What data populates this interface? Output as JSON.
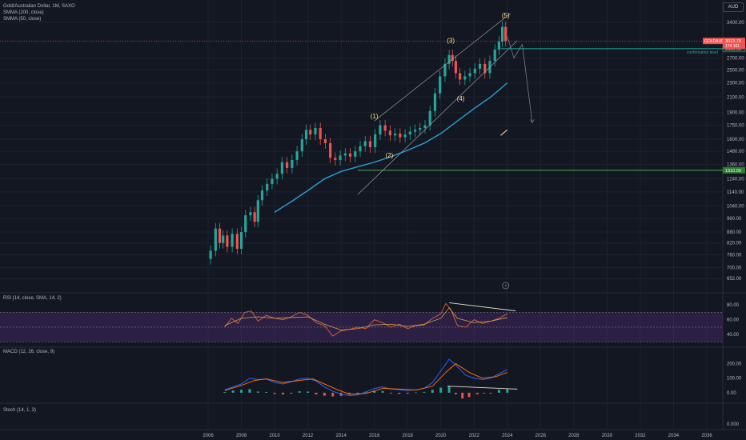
{
  "header": {
    "symbol_line": "Gold/Australian Dollar, 1M, SAXO",
    "sma_200": "SMMA (200, close)",
    "sma_50": "SMMA (50, close)",
    "currency": "AUD"
  },
  "chart_data": [
    {
      "type": "candlestick",
      "panel": "price",
      "x_tick_labels": [
        "2006",
        "2008",
        "2010",
        "2012",
        "2014",
        "2016",
        "2018",
        "2020",
        "2022",
        "2024",
        "2026",
        "2028",
        "2030",
        "2032",
        "2034",
        "2036"
      ],
      "y_tick_labels": [
        "3400.00",
        "3000.00",
        "2700.00",
        "2500.00",
        "2300.00",
        "2100.00",
        "1900.00",
        "1750.00",
        "1600.00",
        "1480.00",
        "1360.00",
        "1240.00",
        "1140.00",
        "1040.00",
        "960.00",
        "880.00",
        "820.00",
        "760.00",
        "700.00",
        "652.00"
      ],
      "log_scale": true,
      "ylim": [
        620,
        3650
      ],
      "close_path": [
        [
          2006.0,
          740
        ],
        [
          2006.3,
          780
        ],
        [
          2006.6,
          900
        ],
        [
          2006.8,
          820
        ],
        [
          2007.0,
          860
        ],
        [
          2007.3,
          800
        ],
        [
          2007.6,
          870
        ],
        [
          2007.9,
          790
        ],
        [
          2008.1,
          880
        ],
        [
          2008.4,
          980
        ],
        [
          2008.7,
          1000
        ],
        [
          2008.9,
          940
        ],
        [
          2009.1,
          1080
        ],
        [
          2009.4,
          1150
        ],
        [
          2009.7,
          1200
        ],
        [
          2010.0,
          1240
        ],
        [
          2010.3,
          1280
        ],
        [
          2010.6,
          1380
        ],
        [
          2010.9,
          1330
        ],
        [
          2011.2,
          1400
        ],
        [
          2011.5,
          1480
        ],
        [
          2011.8,
          1600
        ],
        [
          2012.0,
          1700
        ],
        [
          2012.3,
          1650
        ],
        [
          2012.6,
          1720
        ],
        [
          2012.9,
          1600
        ],
        [
          2013.2,
          1560
        ],
        [
          2013.5,
          1420
        ],
        [
          2013.8,
          1400
        ],
        [
          2014.1,
          1440
        ],
        [
          2014.4,
          1460
        ],
        [
          2014.7,
          1430
        ],
        [
          2015.0,
          1480
        ],
        [
          2015.3,
          1530
        ],
        [
          2015.6,
          1580
        ],
        [
          2015.9,
          1520
        ],
        [
          2016.2,
          1650
        ],
        [
          2016.5,
          1750
        ],
        [
          2016.8,
          1690
        ],
        [
          2017.1,
          1640
        ],
        [
          2017.4,
          1660
        ],
        [
          2017.7,
          1620
        ],
        [
          2018.0,
          1650
        ],
        [
          2018.3,
          1680
        ],
        [
          2018.6,
          1700
        ],
        [
          2018.9,
          1720
        ],
        [
          2019.2,
          1750
        ],
        [
          2019.5,
          1920
        ],
        [
          2019.8,
          2150
        ],
        [
          2020.1,
          2400
        ],
        [
          2020.4,
          2600
        ],
        [
          2020.6,
          2750
        ],
        [
          2020.8,
          2650
        ],
        [
          2021.0,
          2450
        ],
        [
          2021.3,
          2350
        ],
        [
          2021.6,
          2400
        ],
        [
          2021.9,
          2450
        ],
        [
          2022.2,
          2520
        ],
        [
          2022.5,
          2600
        ],
        [
          2022.8,
          2450
        ],
        [
          2023.1,
          2650
        ],
        [
          2023.4,
          2850
        ],
        [
          2023.6,
          3000
        ],
        [
          2023.8,
          3300
        ],
        [
          2024.0,
          3013
        ]
      ],
      "last_price": "3013.78",
      "last_price_sub": "174 161",
      "confirmation_price": "2866.52",
      "confirmation_label": "confirmation level",
      "support_price": "1310.00",
      "symbol_tag": "GOLDAUD",
      "wave_labels": [
        {
          "label": "(1)",
          "x": 2016.0,
          "y": 1830
        },
        {
          "label": "(2)",
          "x": 2016.9,
          "y": 1420
        },
        {
          "label": "(3)",
          "x": 2020.6,
          "y": 2980
        },
        {
          "label": "(4)",
          "x": 2021.2,
          "y": 2050
        },
        {
          "label": "(5)",
          "x": 2023.9,
          "y": 3500
        }
      ],
      "sma200_path": [
        [
          2010.0,
          1000
        ],
        [
          2011.0,
          1070
        ],
        [
          2012.0,
          1150
        ],
        [
          2013.0,
          1240
        ],
        [
          2014.0,
          1300
        ],
        [
          2015.0,
          1340
        ],
        [
          2016.0,
          1380
        ],
        [
          2017.0,
          1430
        ],
        [
          2018.0,
          1490
        ],
        [
          2019.0,
          1560
        ],
        [
          2020.0,
          1660
        ],
        [
          2021.0,
          1800
        ],
        [
          2022.0,
          1950
        ],
        [
          2023.0,
          2100
        ],
        [
          2024.0,
          2300
        ]
      ],
      "channel_upper": [
        [
          2016.0,
          1800
        ],
        [
          2024.2,
          3600
        ]
      ],
      "channel_lower": [
        [
          2015.0,
          1120
        ],
        [
          2024.6,
          3020
        ]
      ],
      "projection_path": [
        [
          2024.0,
          3100
        ],
        [
          2024.4,
          2700
        ],
        [
          2024.9,
          2950
        ],
        [
          2025.5,
          1780
        ]
      ],
      "future_bar": [
        [
          2023.6,
          1640
        ],
        [
          2024.0,
          1700
        ]
      ]
    },
    {
      "type": "line",
      "panel": "rsi",
      "title": "RSI (14, close, SMA, 14, 2)",
      "y_tick_labels": [
        "80.00",
        "60.00",
        "40.00"
      ],
      "ylim": [
        25,
        90
      ],
      "band": [
        30,
        70
      ],
      "rsi_path": [
        [
          2007.0,
          50
        ],
        [
          2007.4,
          62
        ],
        [
          2007.8,
          55
        ],
        [
          2008.2,
          70
        ],
        [
          2008.6,
          72
        ],
        [
          2009.0,
          58
        ],
        [
          2009.5,
          66
        ],
        [
          2010.0,
          62
        ],
        [
          2010.5,
          60
        ],
        [
          2011.0,
          64
        ],
        [
          2011.5,
          70
        ],
        [
          2012.0,
          66
        ],
        [
          2012.5,
          56
        ],
        [
          2013.0,
          52
        ],
        [
          2013.5,
          38
        ],
        [
          2014.0,
          45
        ],
        [
          2014.5,
          47
        ],
        [
          2015.0,
          50
        ],
        [
          2015.5,
          48
        ],
        [
          2016.0,
          60
        ],
        [
          2016.5,
          56
        ],
        [
          2017.0,
          50
        ],
        [
          2017.5,
          54
        ],
        [
          2018.0,
          48
        ],
        [
          2018.5,
          52
        ],
        [
          2019.0,
          53
        ],
        [
          2019.5,
          62
        ],
        [
          2020.0,
          68
        ],
        [
          2020.3,
          82
        ],
        [
          2020.6,
          74
        ],
        [
          2021.0,
          52
        ],
        [
          2021.5,
          50
        ],
        [
          2022.0,
          60
        ],
        [
          2022.5,
          55
        ],
        [
          2023.0,
          58
        ],
        [
          2023.5,
          62
        ],
        [
          2024.0,
          68
        ]
      ],
      "rsi_sma_path": [
        [
          2007.0,
          52
        ],
        [
          2008.0,
          62
        ],
        [
          2009.0,
          64
        ],
        [
          2010.0,
          62
        ],
        [
          2011.0,
          63
        ],
        [
          2012.0,
          64
        ],
        [
          2013.0,
          54
        ],
        [
          2014.0,
          46
        ],
        [
          2015.0,
          48
        ],
        [
          2016.0,
          53
        ],
        [
          2017.0,
          54
        ],
        [
          2018.0,
          51
        ],
        [
          2019.0,
          54
        ],
        [
          2020.0,
          62
        ],
        [
          2020.5,
          76
        ],
        [
          2021.0,
          62
        ],
        [
          2022.0,
          56
        ],
        [
          2023.0,
          58
        ],
        [
          2024.0,
          63
        ]
      ],
      "divergence": [
        [
          2020.5,
          83
        ],
        [
          2024.5,
          72
        ]
      ]
    },
    {
      "type": "histogram",
      "panel": "macd",
      "title": "MACD (12, 26, close, 9)",
      "y_tick_labels": [
        "200.00",
        "100.00",
        "0.00"
      ],
      "ylim": [
        -50,
        280
      ],
      "macd_path": [
        [
          2007.0,
          20
        ],
        [
          2007.5,
          40
        ],
        [
          2008.0,
          60
        ],
        [
          2008.5,
          100
        ],
        [
          2009.0,
          90
        ],
        [
          2009.5,
          95
        ],
        [
          2010.0,
          70
        ],
        [
          2010.5,
          60
        ],
        [
          2011.0,
          75
        ],
        [
          2011.5,
          95
        ],
        [
          2012.0,
          100
        ],
        [
          2012.5,
          80
        ],
        [
          2013.0,
          40
        ],
        [
          2013.5,
          10
        ],
        [
          2014.0,
          -10
        ],
        [
          2014.5,
          -20
        ],
        [
          2015.0,
          -15
        ],
        [
          2015.5,
          5
        ],
        [
          2016.0,
          30
        ],
        [
          2016.5,
          40
        ],
        [
          2017.0,
          25
        ],
        [
          2017.5,
          20
        ],
        [
          2018.0,
          15
        ],
        [
          2018.5,
          20
        ],
        [
          2019.0,
          30
        ],
        [
          2019.5,
          70
        ],
        [
          2020.0,
          150
        ],
        [
          2020.5,
          230
        ],
        [
          2020.9,
          190
        ],
        [
          2021.5,
          120
        ],
        [
          2022.0,
          100
        ],
        [
          2022.5,
          90
        ],
        [
          2023.0,
          100
        ],
        [
          2023.5,
          130
        ],
        [
          2024.0,
          160
        ]
      ],
      "signal_path": [
        [
          2007.0,
          15
        ],
        [
          2008.0,
          50
        ],
        [
          2008.8,
          85
        ],
        [
          2009.5,
          95
        ],
        [
          2010.5,
          70
        ],
        [
          2011.5,
          85
        ],
        [
          2012.3,
          95
        ],
        [
          2013.0,
          60
        ],
        [
          2013.8,
          20
        ],
        [
          2014.5,
          -10
        ],
        [
          2015.5,
          -5
        ],
        [
          2016.5,
          30
        ],
        [
          2017.5,
          25
        ],
        [
          2018.5,
          18
        ],
        [
          2019.5,
          45
        ],
        [
          2020.3,
          140
        ],
        [
          2020.9,
          200
        ],
        [
          2021.7,
          140
        ],
        [
          2022.5,
          100
        ],
        [
          2023.3,
          110
        ],
        [
          2024.0,
          140
        ]
      ],
      "histogram": [
        [
          2007.0,
          5
        ],
        [
          2007.5,
          15
        ],
        [
          2008.0,
          20
        ],
        [
          2008.5,
          25
        ],
        [
          2009.0,
          8
        ],
        [
          2009.5,
          5
        ],
        [
          2010.0,
          -8
        ],
        [
          2010.5,
          -12
        ],
        [
          2011.0,
          -6
        ],
        [
          2011.5,
          10
        ],
        [
          2012.0,
          8
        ],
        [
          2012.5,
          -12
        ],
        [
          2013.0,
          -20
        ],
        [
          2013.5,
          -25
        ],
        [
          2014.0,
          -22
        ],
        [
          2014.5,
          -12
        ],
        [
          2015.0,
          -8
        ],
        [
          2015.5,
          8
        ],
        [
          2016.0,
          15
        ],
        [
          2016.5,
          12
        ],
        [
          2017.0,
          -5
        ],
        [
          2017.5,
          -8
        ],
        [
          2018.0,
          -6
        ],
        [
          2018.5,
          2
        ],
        [
          2019.0,
          6
        ],
        [
          2019.5,
          20
        ],
        [
          2020.0,
          35
        ],
        [
          2020.5,
          45
        ],
        [
          2020.9,
          -10
        ],
        [
          2021.3,
          -40
        ],
        [
          2021.7,
          -30
        ],
        [
          2022.2,
          -10
        ],
        [
          2022.6,
          -5
        ],
        [
          2023.0,
          -5
        ],
        [
          2023.5,
          20
        ],
        [
          2024.0,
          25
        ]
      ],
      "divergence": [
        [
          2020.4,
          45
        ],
        [
          2024.6,
          25
        ]
      ]
    },
    {
      "type": "line",
      "panel": "stoch",
      "title": "Stoch (14, 1, 3)",
      "y_tick_labels": [
        "0.000"
      ],
      "ylim": [
        0,
        100
      ]
    }
  ],
  "colors": {
    "background": "#131722",
    "grid": "#1e222d",
    "up": "#26a69a",
    "down": "#ef5350",
    "sma": "#2a9fd6",
    "confirmation": "#26a69a",
    "support": "#4caf50",
    "wave_label": "#ffe082",
    "rsi_band": "#4a2c6e",
    "rsi_line": "#e0603a",
    "rsi_sma": "#d4a24a",
    "macd": "#2962ff",
    "signal": "#ff6d00"
  },
  "icons": {
    "bolt": "lightning-icon"
  }
}
